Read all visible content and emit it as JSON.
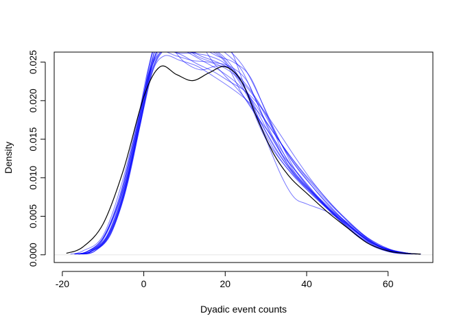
{
  "chart_data": {
    "type": "line",
    "title": "",
    "xlabel": "Dyadic event counts",
    "ylabel": "Density",
    "xlim": [
      -22,
      71
    ],
    "ylim": [
      -0.001,
      0.0263
    ],
    "x_ticks": [
      -20,
      0,
      20,
      40,
      60
    ],
    "x_tick_labels": [
      "-20",
      "0",
      "20",
      "40",
      "60"
    ],
    "y_ticks": [
      0.0,
      0.005,
      0.01,
      0.015,
      0.02,
      0.025
    ],
    "y_tick_labels": [
      "0.000",
      "0.005",
      "0.010",
      "0.015",
      "0.020",
      "0.025"
    ],
    "grid": false,
    "legend": "none",
    "observed_color": "#000000",
    "simulated_color": "#0000ff",
    "series": [
      {
        "role": "observed",
        "x": [
          -19,
          -15,
          -10,
          -5,
          0,
          4,
          8,
          12,
          16,
          20,
          24,
          28,
          32,
          36,
          40,
          45,
          50,
          55,
          60,
          64,
          68
        ],
        "y": [
          0.0002,
          0.001,
          0.004,
          0.011,
          0.0205,
          0.0244,
          0.0234,
          0.0226,
          0.0236,
          0.0244,
          0.0225,
          0.0175,
          0.013,
          0.01,
          0.008,
          0.0056,
          0.0035,
          0.0015,
          0.0005,
          0.0002,
          0.0001
        ]
      },
      {
        "role": "simulated",
        "x": [
          -18,
          -15,
          -10,
          -5,
          0,
          2,
          5,
          8,
          12,
          16,
          20,
          24,
          28,
          32,
          36,
          40,
          45,
          50,
          55,
          60,
          64,
          68
        ],
        "y": [
          0.0001,
          0.0005,
          0.0025,
          0.01,
          0.021,
          0.0245,
          0.0275,
          0.028,
          0.0278,
          0.027,
          0.0255,
          0.0225,
          0.018,
          0.014,
          0.011,
          0.0085,
          0.006,
          0.0038,
          0.0018,
          0.0006,
          0.0002,
          0.0001
        ]
      },
      {
        "role": "simulated",
        "x": [
          -17,
          -14,
          -10,
          -5,
          -2,
          1,
          4,
          8,
          12,
          16,
          20,
          24,
          28,
          32,
          36,
          40,
          45,
          50,
          55,
          60,
          65,
          68
        ],
        "y": [
          0.0001,
          0.0004,
          0.002,
          0.0085,
          0.015,
          0.0235,
          0.029,
          0.0295,
          0.0285,
          0.0275,
          0.0262,
          0.024,
          0.0195,
          0.015,
          0.0112,
          0.0088,
          0.0062,
          0.004,
          0.0019,
          0.0007,
          0.0002,
          0.0001
        ]
      },
      {
        "role": "simulated",
        "x": [
          -16,
          -13,
          -9,
          -5,
          -1,
          2,
          5,
          9,
          13,
          17,
          21,
          24,
          27,
          30,
          34,
          38,
          43,
          48,
          53,
          58,
          63,
          67
        ],
        "y": [
          0.0001,
          0.0005,
          0.0025,
          0.008,
          0.017,
          0.025,
          0.03,
          0.0285,
          0.027,
          0.0275,
          0.0268,
          0.023,
          0.0185,
          0.015,
          0.012,
          0.0095,
          0.007,
          0.0045,
          0.0022,
          0.0008,
          0.0002,
          0.0001
        ]
      },
      {
        "role": "simulated",
        "x": [
          -17,
          -14,
          -10,
          -6,
          -2,
          1,
          4,
          8,
          12,
          16,
          20,
          23,
          26,
          29,
          33,
          37,
          41,
          46,
          51,
          56,
          61,
          66
        ],
        "y": [
          0.0001,
          0.0004,
          0.0022,
          0.007,
          0.0155,
          0.0225,
          0.027,
          0.0268,
          0.0262,
          0.0258,
          0.0248,
          0.0228,
          0.02,
          0.0165,
          0.0128,
          0.0102,
          0.0082,
          0.0056,
          0.0032,
          0.0012,
          0.0003,
          0.0001
        ]
      },
      {
        "role": "simulated",
        "x": [
          -16,
          -13,
          -9,
          -5,
          -1,
          2,
          5,
          9,
          13,
          17,
          20,
          23,
          26,
          30,
          34,
          38,
          42,
          47,
          52,
          57,
          62,
          67
        ],
        "y": [
          0.0001,
          0.0005,
          0.0025,
          0.0085,
          0.018,
          0.0262,
          0.0298,
          0.029,
          0.028,
          0.025,
          0.0232,
          0.0215,
          0.0195,
          0.016,
          0.0125,
          0.0098,
          0.0076,
          0.0052,
          0.003,
          0.0011,
          0.0003,
          0.0001
        ]
      },
      {
        "role": "simulated",
        "x": [
          -17,
          -14,
          -10,
          -6,
          -2,
          1,
          4,
          7,
          10,
          14,
          18,
          22,
          26,
          30,
          34,
          37,
          40,
          45,
          50,
          55,
          60,
          65,
          68
        ],
        "y": [
          0.0001,
          0.0004,
          0.0022,
          0.0075,
          0.016,
          0.024,
          0.0285,
          0.0268,
          0.025,
          0.024,
          0.0245,
          0.024,
          0.0205,
          0.015,
          0.01,
          0.0074,
          0.0066,
          0.0056,
          0.004,
          0.002,
          0.0007,
          0.0002,
          0.0001
        ]
      },
      {
        "role": "simulated",
        "x": [
          -16,
          -13,
          -9,
          -5,
          -1,
          2,
          6,
          10,
          14,
          18,
          22,
          26,
          30,
          34,
          38,
          42,
          46,
          51,
          56,
          61,
          66
        ],
        "y": [
          0.0001,
          0.0004,
          0.0022,
          0.0075,
          0.017,
          0.024,
          0.0275,
          0.0268,
          0.0265,
          0.0262,
          0.0238,
          0.0205,
          0.0165,
          0.013,
          0.0105,
          0.008,
          0.0057,
          0.0032,
          0.0013,
          0.0003,
          0.0001
        ]
      },
      {
        "role": "simulated",
        "x": [
          -16,
          -13,
          -9,
          -5,
          -1,
          2,
          5,
          9,
          13,
          17,
          21,
          25,
          29,
          33,
          37,
          41,
          45,
          50,
          55,
          60,
          65,
          68
        ],
        "y": [
          0.0001,
          0.0004,
          0.0021,
          0.0072,
          0.0165,
          0.0238,
          0.0265,
          0.026,
          0.0248,
          0.0238,
          0.0225,
          0.0212,
          0.019,
          0.016,
          0.0128,
          0.0098,
          0.0072,
          0.0045,
          0.0022,
          0.0008,
          0.0002,
          0.0001
        ]
      },
      {
        "role": "simulated",
        "x": [
          -15,
          -12,
          -8,
          -4,
          0,
          3,
          6,
          10,
          14,
          18,
          22,
          26,
          30,
          34,
          38,
          42,
          46,
          50,
          55,
          60,
          64,
          67
        ],
        "y": [
          0.0001,
          0.0005,
          0.003,
          0.01,
          0.02,
          0.027,
          0.029,
          0.0285,
          0.027,
          0.0258,
          0.025,
          0.0232,
          0.0185,
          0.0135,
          0.01,
          0.0078,
          0.0058,
          0.0042,
          0.0022,
          0.0008,
          0.0002,
          0.0001
        ]
      },
      {
        "role": "simulated",
        "x": [
          -16,
          -13,
          -9,
          -5,
          -1,
          2,
          5,
          9,
          13,
          17,
          21,
          25,
          28,
          31,
          35,
          39,
          43,
          48,
          53,
          58,
          63,
          67
        ],
        "y": [
          0.0001,
          0.0004,
          0.0023,
          0.0078,
          0.0172,
          0.0245,
          0.0282,
          0.0275,
          0.0258,
          0.025,
          0.0245,
          0.0228,
          0.0195,
          0.0158,
          0.012,
          0.0095,
          0.0074,
          0.005,
          0.0028,
          0.001,
          0.0003,
          0.0001
        ]
      },
      {
        "role": "simulated",
        "x": [
          -17,
          -14,
          -10,
          -6,
          -2,
          1,
          4,
          8,
          12,
          16,
          20,
          24,
          28,
          32,
          36,
          40,
          44,
          49,
          54,
          59,
          64,
          68
        ],
        "y": [
          0.0001,
          0.0004,
          0.0022,
          0.0074,
          0.016,
          0.0232,
          0.0268,
          0.0262,
          0.0262,
          0.0265,
          0.025,
          0.021,
          0.0178,
          0.015,
          0.0118,
          0.009,
          0.0066,
          0.004,
          0.002,
          0.0007,
          0.0002,
          0.0001
        ]
      },
      {
        "role": "simulated",
        "x": [
          -15,
          -12,
          -8,
          -4,
          0,
          3,
          7,
          11,
          15,
          19,
          23,
          27,
          31,
          35,
          39,
          43,
          47,
          52,
          57,
          62,
          67
        ],
        "y": [
          0.0001,
          0.0005,
          0.0028,
          0.0092,
          0.019,
          0.025,
          0.0272,
          0.0262,
          0.025,
          0.0238,
          0.0222,
          0.0198,
          0.0165,
          0.0135,
          0.0108,
          0.0084,
          0.006,
          0.0034,
          0.0014,
          0.0004,
          0.0001
        ]
      },
      {
        "role": "simulated",
        "x": [
          -16,
          -13,
          -9,
          -5,
          -1,
          2,
          5,
          9,
          13,
          17,
          21,
          25,
          29,
          33,
          37,
          41,
          45,
          50,
          55,
          60,
          65,
          68
        ],
        "y": [
          0.0001,
          0.0004,
          0.0024,
          0.0082,
          0.0178,
          0.0252,
          0.029,
          0.0292,
          0.0285,
          0.0278,
          0.0265,
          0.024,
          0.0198,
          0.0152,
          0.0112,
          0.0085,
          0.0062,
          0.0039,
          0.0019,
          0.0007,
          0.0002,
          0.0001
        ]
      },
      {
        "role": "simulated",
        "x": [
          -16,
          -13,
          -9,
          -5,
          -1,
          2,
          5,
          9,
          13,
          17,
          21,
          25,
          29,
          33,
          37,
          41,
          45,
          50,
          55,
          60,
          65
        ],
        "y": [
          0.0001,
          0.0004,
          0.0022,
          0.0076,
          0.0168,
          0.0236,
          0.0258,
          0.0252,
          0.0245,
          0.0232,
          0.0218,
          0.0202,
          0.018,
          0.015,
          0.012,
          0.0094,
          0.007,
          0.0044,
          0.0021,
          0.0007,
          0.0002
        ]
      },
      {
        "role": "simulated",
        "x": [
          -17,
          -14,
          -10,
          -6,
          -2,
          1,
          4,
          8,
          12,
          16,
          20,
          24,
          28,
          32,
          36,
          40,
          44,
          49,
          54,
          59,
          64,
          68
        ],
        "y": [
          0.0001,
          0.0004,
          0.002,
          0.007,
          0.0155,
          0.0228,
          0.0262,
          0.0258,
          0.0252,
          0.025,
          0.0242,
          0.0225,
          0.0198,
          0.016,
          0.0125,
          0.0098,
          0.0072,
          0.0045,
          0.0022,
          0.0008,
          0.0002,
          0.0001
        ]
      },
      {
        "role": "simulated",
        "x": [
          -15,
          -12,
          -8,
          -4,
          0,
          3,
          6,
          10,
          14,
          18,
          22,
          26,
          30,
          34,
          38,
          42,
          46,
          51,
          56,
          61,
          66
        ],
        "y": [
          0.0001,
          0.0005,
          0.0028,
          0.0095,
          0.0195,
          0.0262,
          0.0282,
          0.027,
          0.0258,
          0.025,
          0.0238,
          0.0215,
          0.0182,
          0.0142,
          0.011,
          0.0085,
          0.0062,
          0.0036,
          0.0016,
          0.0005,
          0.0001
        ]
      }
    ]
  }
}
